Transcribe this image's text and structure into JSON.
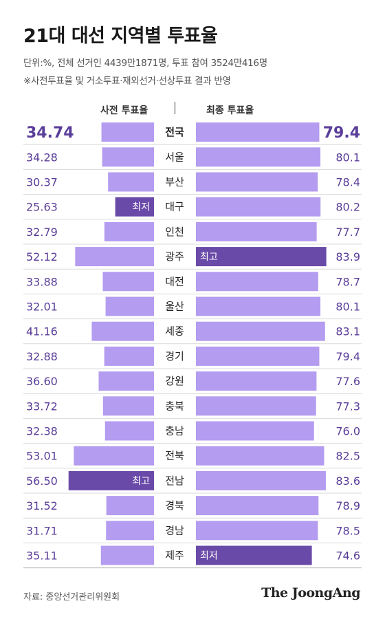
{
  "title": "21대 대선 지역별 투표율",
  "subtitle_1": "단위:%, 전체 선거인 4439만1871명, 투표 참여 3524만416명",
  "subtitle_2": "※사전투표율 및 거소투표·재외선거·선상투표 결과 반영",
  "source": "자료: 중앙선거관리위원회",
  "logo": "The JoongAng",
  "colors": {
    "bar": "#b49cf0",
    "highlight_bar": "#6a4aa8",
    "value_text": "#5a3d99",
    "row_line": "#d9d9d9"
  },
  "chart_data": {
    "type": "bar",
    "series": [
      {
        "name": "사전 투표율",
        "values": [
          34.74,
          34.28,
          30.37,
          25.63,
          32.79,
          52.12,
          33.88,
          32.01,
          41.16,
          32.88,
          36.6,
          33.72,
          32.38,
          53.01,
          56.5,
          31.52,
          31.71,
          35.11
        ]
      },
      {
        "name": "최종 투표율",
        "values": [
          79.4,
          80.1,
          78.4,
          80.2,
          77.7,
          83.9,
          78.7,
          80.1,
          83.1,
          79.4,
          77.6,
          77.3,
          76.0,
          82.5,
          83.6,
          78.9,
          78.5,
          74.6
        ]
      }
    ],
    "categories": [
      "전국",
      "서울",
      "부산",
      "대구",
      "인천",
      "광주",
      "대전",
      "울산",
      "세종",
      "경기",
      "강원",
      "충북",
      "충남",
      "전북",
      "전남",
      "경북",
      "경남",
      "제주"
    ],
    "early_labels": [
      "34.74",
      "34.28",
      "30.37",
      "25.63",
      "32.79",
      "52.12",
      "33.88",
      "32.01",
      "41.16",
      "32.88",
      "36.60",
      "33.72",
      "32.38",
      "53.01",
      "56.50",
      "31.52",
      "31.71",
      "35.11"
    ],
    "final_labels": [
      "79.4",
      "80.1",
      "78.4",
      "80.2",
      "77.7",
      "83.9",
      "78.7",
      "80.1",
      "83.1",
      "79.4",
      "77.6",
      "77.3",
      "76.0",
      "82.5",
      "83.6",
      "78.9",
      "78.5",
      "74.6"
    ],
    "annotations": {
      "early": {
        "3": "최저",
        "14": "최고"
      },
      "final": {
        "5": "최고",
        "17": "최저"
      }
    }
  }
}
